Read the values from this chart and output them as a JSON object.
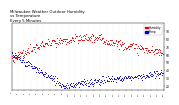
{
  "title": "Milwaukee Weather Outdoor Humidity\nvs Temperature\nEvery 5 Minutes",
  "title_fontsize": 2.8,
  "background_color": "#ffffff",
  "plot_bg_color": "#ffffff",
  "grid_color": "#cccccc",
  "red_color": "#dd0000",
  "blue_color": "#0000cc",
  "ylim": [
    15,
    100
  ],
  "xlim": [
    0,
    288
  ],
  "yticks": [
    20,
    30,
    40,
    50,
    60,
    70,
    80,
    90
  ],
  "legend_labels": [
    "Humidity",
    "Temp"
  ],
  "dot_size": 0.6
}
